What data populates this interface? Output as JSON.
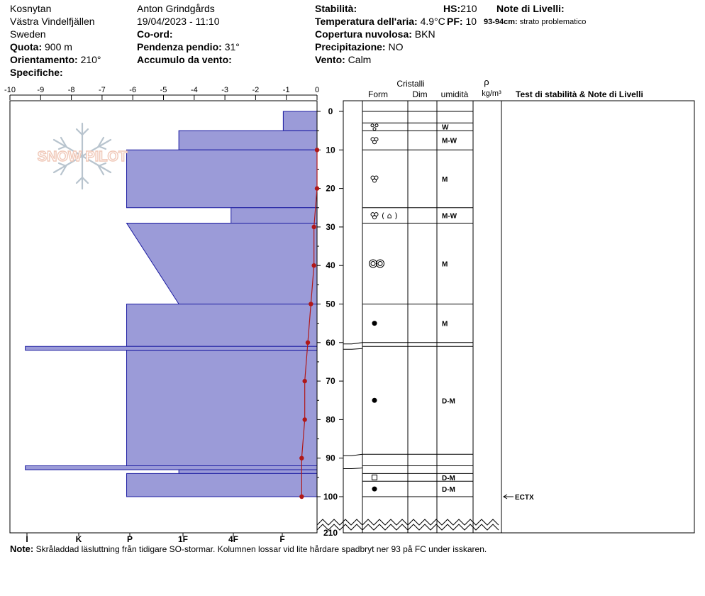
{
  "header": {
    "location": "Kosnytan",
    "region": "Västra Vindelfjällen",
    "country": "Sweden",
    "elevation_label": "Quota:",
    "elevation_value": "900 m",
    "aspect_label": "Orientamento:",
    "aspect_value": "210°",
    "specifics_label": "Specifiche:",
    "observer": "Anton Grindgårds",
    "datetime": "19/04/2023 - 11:10",
    "coord_label": "Co-ord:",
    "slope_label": "Pendenza pendio:",
    "slope_value": "31°",
    "wind_loading_label": "Accumulo da vento:",
    "stability_label": "Stabilità:",
    "air_temp_label": "Temperatura dell'aria:",
    "air_temp_value": "4.9°C",
    "cloud_label": "Copertura nuvolosa:",
    "cloud_value": "BKN",
    "precip_label": "Precipitazione:",
    "precip_value": "NO",
    "wind_label": "Vento:",
    "wind_value": "Calm",
    "hs_label": "HS:",
    "hs_value": "210",
    "pf_label": "PF:",
    "pf_value": "10",
    "layer_notes_label": "Note di Livelli:",
    "layer_note_range": "93-94cm:",
    "layer_note_text": "strato problematico"
  },
  "logo": {
    "text": "SNOW PILOT"
  },
  "columns": {
    "crystals": "Cristalli",
    "form": "Form",
    "dim": "Dim",
    "humidity": "umidità",
    "rho": "ρ",
    "density_unit": "kg/m³",
    "tests_notes": "Test di stabilità & Note di Livelli"
  },
  "note": {
    "label": "Note:",
    "text": "Skråladdad läsluttning från tidigare SO-stormar. Kolumnen lossar vid lite hårdare spadbryt ner 93 på FC under isskaren."
  },
  "chart_data": {
    "type": "snow_profile",
    "temperature_axis": {
      "ticks": [
        -10,
        -9,
        -8,
        -7,
        -6,
        -5,
        -4,
        -3,
        -2,
        -1,
        0
      ],
      "range": [
        -10,
        0
      ],
      "unit": "°C"
    },
    "depth_axis": {
      "ticks": [
        0,
        10,
        20,
        30,
        40,
        50,
        60,
        70,
        80,
        90,
        100
      ],
      "range": [
        0,
        105
      ],
      "bottom_label": "210"
    },
    "hardness_axis": {
      "labels": [
        "I",
        "K",
        "P",
        "1F",
        "4F",
        "F"
      ]
    },
    "hardness_profile": [
      {
        "top": 0,
        "bottom": 5,
        "hardness_top": -1.1,
        "hardness_bottom": -1.1
      },
      {
        "top": 5,
        "bottom": 10,
        "hardness_top": -4.5,
        "hardness_bottom": -4.5
      },
      {
        "top": 10,
        "bottom": 25,
        "hardness_top": -6.2,
        "hardness_bottom": -6.2
      },
      {
        "top": 25,
        "bottom": 29,
        "hardness_top": -2.8,
        "hardness_bottom": -2.8
      },
      {
        "top": 29,
        "bottom": 50,
        "hardness_top": -6.2,
        "hardness_bottom": -4.5
      },
      {
        "top": 50,
        "bottom": 61,
        "hardness_top": -6.2,
        "hardness_bottom": -6.2
      },
      {
        "top": 61,
        "bottom": 62,
        "hardness_top": -9.5,
        "hardness_bottom": -9.5
      },
      {
        "top": 62,
        "bottom": 92,
        "hardness_top": -6.2,
        "hardness_bottom": -6.2
      },
      {
        "top": 92,
        "bottom": 93,
        "hardness_top": -9.5,
        "hardness_bottom": -9.5
      },
      {
        "top": 93,
        "bottom": 94,
        "hardness_top": -4.5,
        "hardness_bottom": -4.5
      },
      {
        "top": 94,
        "bottom": 100,
        "hardness_top": -6.2,
        "hardness_bottom": -6.2
      }
    ],
    "temperature_profile": [
      {
        "depth": 10,
        "temp": 0.0
      },
      {
        "depth": 20,
        "temp": 0.0
      },
      {
        "depth": 30,
        "temp": -0.1
      },
      {
        "depth": 40,
        "temp": -0.1
      },
      {
        "depth": 50,
        "temp": -0.2
      },
      {
        "depth": 60,
        "temp": -0.3
      },
      {
        "depth": 70,
        "temp": -0.4
      },
      {
        "depth": 80,
        "temp": -0.4
      },
      {
        "depth": 90,
        "temp": -0.5
      },
      {
        "depth": 100,
        "temp": -0.5
      }
    ],
    "layers": [
      {
        "top": 0,
        "bottom": 3,
        "form": "",
        "humidity": ""
      },
      {
        "top": 3,
        "bottom": 5,
        "form": "small-dots",
        "humidity": "W"
      },
      {
        "top": 5,
        "bottom": 10,
        "form": "rounded",
        "humidity": "M-W"
      },
      {
        "top": 10,
        "bottom": 25,
        "form": "rounded",
        "humidity": "M"
      },
      {
        "top": 25,
        "bottom": 29,
        "form": "rounded-faceted",
        "humidity": "M-W"
      },
      {
        "top": 29,
        "bottom": 50,
        "form": "melt-clusters",
        "humidity": "M"
      },
      {
        "top": 50,
        "bottom": 60,
        "form": "dot",
        "humidity": "M"
      },
      {
        "top": 60,
        "bottom": 61,
        "form": "",
        "humidity": ""
      },
      {
        "top": 61,
        "bottom": 89,
        "form": "dot",
        "humidity": "D-M"
      },
      {
        "top": 89,
        "bottom": 92,
        "form": "",
        "humidity": ""
      },
      {
        "top": 92,
        "bottom": 94,
        "form": "",
        "humidity": ""
      },
      {
        "top": 94,
        "bottom": 96,
        "form": "square",
        "humidity": "D-M"
      },
      {
        "top": 96,
        "bottom": 100,
        "form": "dot",
        "humidity": "D-M"
      }
    ],
    "stability_tests": [
      {
        "depth": 100,
        "label": "ECTX"
      }
    ],
    "colors": {
      "hardness_fill": "#9b9bd8",
      "hardness_stroke": "#1a1aa0",
      "temperature": "#b01818",
      "logo": "#f0c8b8",
      "snowflake": "#b8c4ce"
    }
  }
}
